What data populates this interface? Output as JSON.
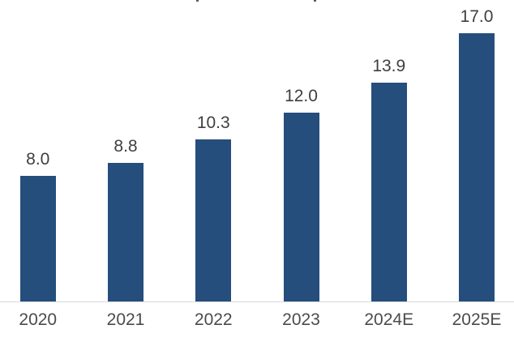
{
  "chart_data": {
    "type": "bar",
    "categories": [
      "2020",
      "2021",
      "2022",
      "2023",
      "2024E",
      "2025E"
    ],
    "values": [
      8.0,
      8.8,
      10.3,
      12.0,
      13.9,
      17.0
    ],
    "value_labels": [
      "8.0",
      "8.8",
      "10.3",
      "12.0",
      "13.9",
      "17.0"
    ],
    "xlabel": "",
    "ylabel": "",
    "ylim": [
      0,
      17.5
    ],
    "grid": false,
    "legend": false,
    "data_labels_position": "above-bar",
    "colors": {
      "bar": "#254e7c",
      "value_label": "#3f3f3f",
      "tick_label": "#4b4b4b",
      "axis_line": "#d9d9d9",
      "background": "#ffffff",
      "title_fragment": "#5a5a5a"
    }
  }
}
